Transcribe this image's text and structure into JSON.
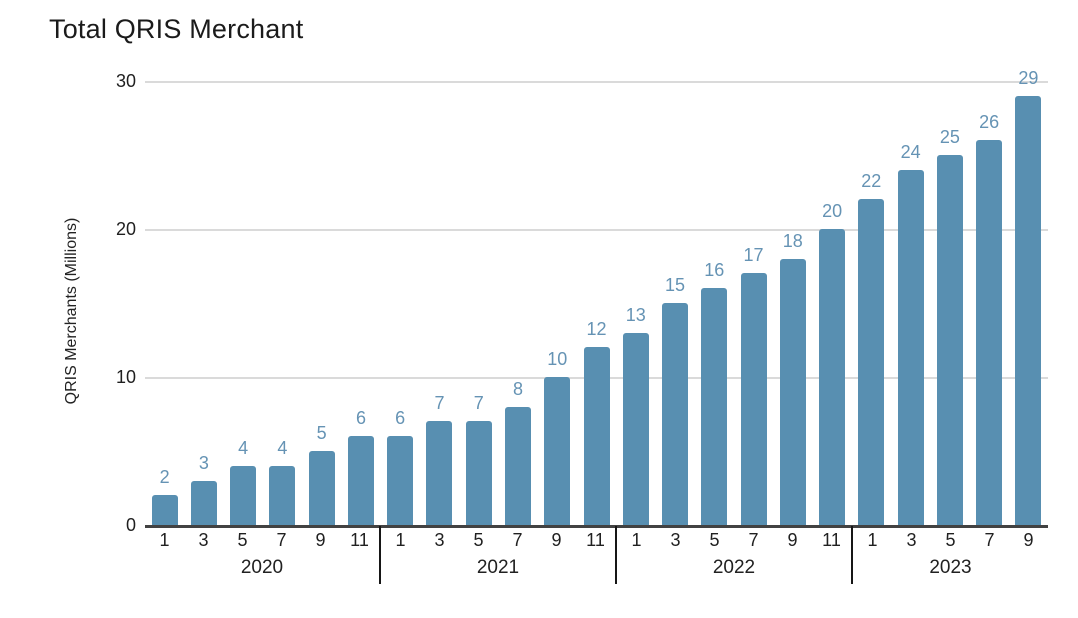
{
  "chart_data": {
    "type": "bar",
    "title": "Total QRIS Merchant",
    "xlabel": "",
    "ylabel": "QRIS Merchants (Millions)",
    "ylim": [
      0,
      30
    ],
    "yticks": [
      0,
      10,
      20,
      30
    ],
    "grid": true,
    "legend_position": "none",
    "bar_color": "#588fb1",
    "value_label_color": "#6593b4",
    "gridline_color": "#dadada",
    "groups": [
      {
        "year": "2020",
        "months": [
          "1",
          "3",
          "5",
          "7",
          "9",
          "11"
        ],
        "values": [
          2,
          3,
          4,
          4,
          5,
          6
        ]
      },
      {
        "year": "2021",
        "months": [
          "1",
          "3",
          "5",
          "7",
          "9",
          "11"
        ],
        "values": [
          6,
          7,
          7,
          8,
          10,
          12
        ]
      },
      {
        "year": "2022",
        "months": [
          "1",
          "3",
          "5",
          "7",
          "9",
          "11"
        ],
        "values": [
          13,
          15,
          16,
          17,
          18,
          20
        ]
      },
      {
        "year": "2023",
        "months": [
          "1",
          "3",
          "5",
          "7",
          "9"
        ],
        "values": [
          22,
          24,
          25,
          26,
          29
        ]
      }
    ]
  }
}
